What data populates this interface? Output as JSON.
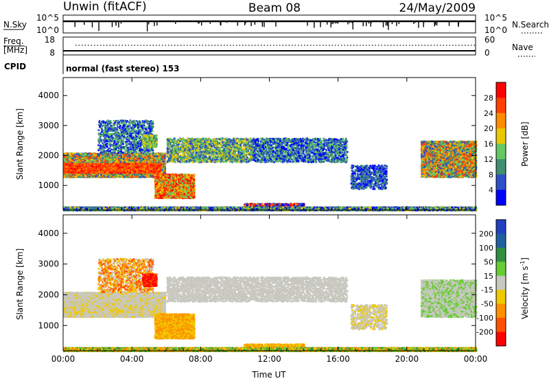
{
  "header": {
    "station": "Unwin (fitACF)",
    "beam": "Beam 08",
    "date": "24/May/2009"
  },
  "strip_panels": {
    "nsky": {
      "label": "N.Sky",
      "ticks": [
        "10^5",
        "10^0"
      ],
      "right_label": "N.Search",
      "right_ticks": [
        "10^5",
        "10^0"
      ]
    },
    "freq": {
      "label_line1": "Freq.",
      "label_line2": "[MHz]",
      "ticks": [
        "18",
        "8"
      ],
      "right_label": "Nave",
      "right_ticks": [
        "60",
        "0"
      ]
    },
    "cpid": {
      "label": "CPID",
      "text": "normal (fast stereo) 153"
    }
  },
  "colors": {
    "power_scale": [
      "#0000ff",
      "#2b50c8",
      "#3f8f70",
      "#64c864",
      "#e8c800",
      "#ff8c00",
      "#ff4000",
      "#ff0000"
    ],
    "velocity_scale": [
      "#2040c0",
      "#2060a0",
      "#2f8f40",
      "#66cc33",
      "#c8c8c0",
      "#f0c800",
      "#ff9000",
      "#ff5000",
      "#ff0000"
    ]
  },
  "chart_data": [
    {
      "type": "heatmap",
      "title": "",
      "ylabel": "Slant Range [km]",
      "xlabel": "",
      "x_ticks": [
        "00:00",
        "04:00",
        "08:00",
        "12:00",
        "16:00",
        "20:00",
        "00:00"
      ],
      "xlim_hours": [
        0,
        24
      ],
      "y_ticks": [
        1000,
        2000,
        3000,
        4000
      ],
      "ylim_km": [
        180,
        4600
      ],
      "colorbar": {
        "label": "Power [dB]",
        "ticks": [
          4,
          8,
          12,
          16,
          20,
          24,
          28
        ],
        "range": [
          0,
          32
        ]
      }
    },
    {
      "type": "heatmap",
      "title": "",
      "ylabel": "Slant Range [km]",
      "xlabel": "Time UT",
      "x_ticks": [
        "00:00",
        "04:00",
        "08:00",
        "12:00",
        "16:00",
        "20:00",
        "00:00"
      ],
      "xlim_hours": [
        0,
        24
      ],
      "y_ticks": [
        1000,
        2000,
        3000,
        4000
      ],
      "ylim_km": [
        180,
        4600
      ],
      "colorbar": {
        "label": "Velocity [m s",
        "label_sup": "-1",
        "label_end": "]",
        "ticks": [
          "200",
          "100",
          "50",
          "15",
          "-15",
          "-50",
          "-100",
          "-200"
        ]
      }
    }
  ]
}
